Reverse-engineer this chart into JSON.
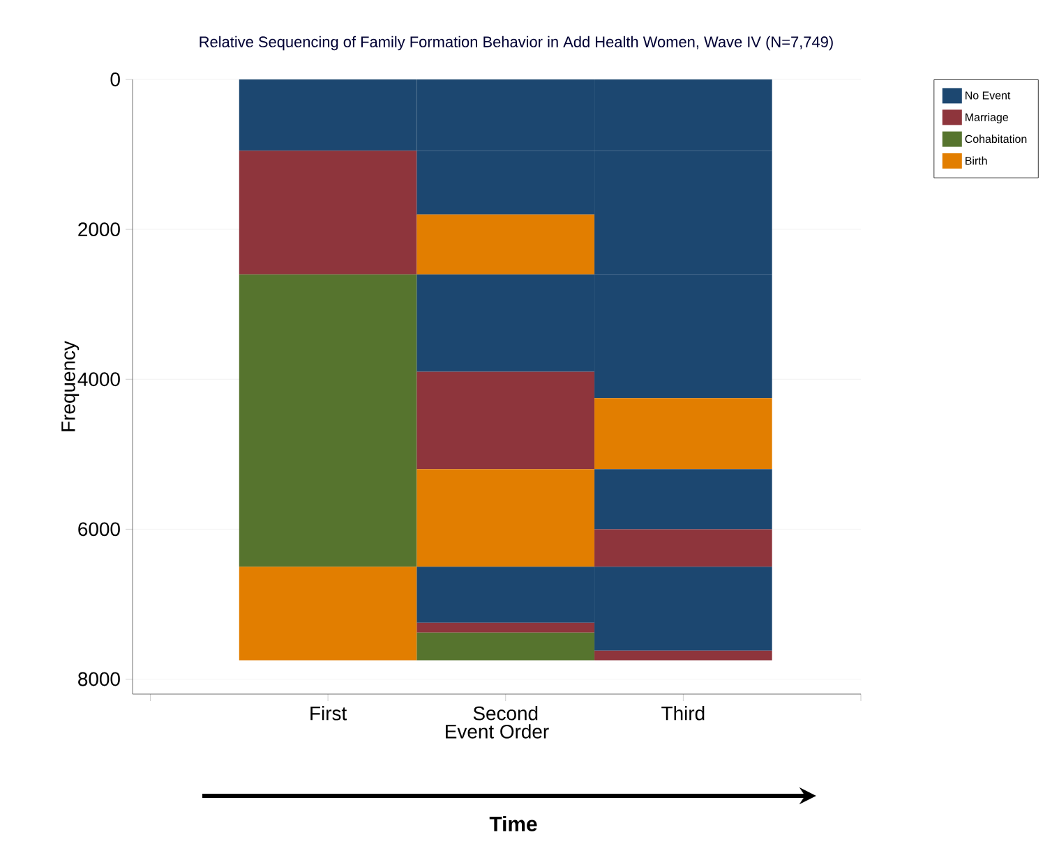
{
  "chart_data": {
    "type": "bar",
    "stacked": true,
    "title": "Relative Sequencing of Family Formation Behavior in Add Health Women, Wave IV (N=7,749)",
    "xlabel": "Event Order",
    "ylabel": "Frequency",
    "categories": [
      "First",
      "Second",
      "Third"
    ],
    "series": [
      {
        "name": "No Event",
        "color": "#1c4770",
        "values": [
          950,
          950,
          950
        ]
      },
      {
        "name": "Marriage",
        "color": "#8e353c",
        "values": [
          1650,
          null,
          null
        ]
      },
      {
        "color": "#1c4770",
        "values": [
          null,
          850,
          1650
        ]
      },
      {
        "name": "Cohabitation",
        "color": "#56742e",
        "values": [
          3900,
          null,
          null
        ]
      },
      {
        "name": "Birth",
        "color": "#e27e00",
        "values": [
          null,
          800,
          null
        ]
      },
      {
        "color": "#1c4770",
        "values": [
          null,
          null,
          1650
        ]
      },
      {
        "color": "#e27e00",
        "values": [
          1250,
          null,
          950
        ]
      },
      {
        "color": "#1c4770",
        "values": [
          null,
          1300,
          null
        ]
      },
      {
        "color": "#8e353c",
        "values": [
          null,
          1300,
          null
        ]
      },
      {
        "color": "#1c4770",
        "values": [
          null,
          null,
          800
        ]
      },
      {
        "color": "#e27e00",
        "values": [
          null,
          1300,
          null
        ]
      },
      {
        "color": "#8e353c",
        "values": [
          null,
          null,
          500
        ]
      },
      {
        "color": "#1c4770",
        "values": [
          null,
          750,
          1120
        ]
      },
      {
        "color": "#8e353c",
        "values": [
          null,
          130,
          130
        ]
      },
      {
        "color": "#56742e",
        "values": [
          null,
          370,
          null
        ]
      }
    ],
    "ylim": [
      8200,
      0
    ],
    "yticks": [
      0,
      2000,
      4000,
      6000,
      8000
    ],
    "grid": "y",
    "legend": "top right",
    "annotations": [
      "Time"
    ]
  }
}
